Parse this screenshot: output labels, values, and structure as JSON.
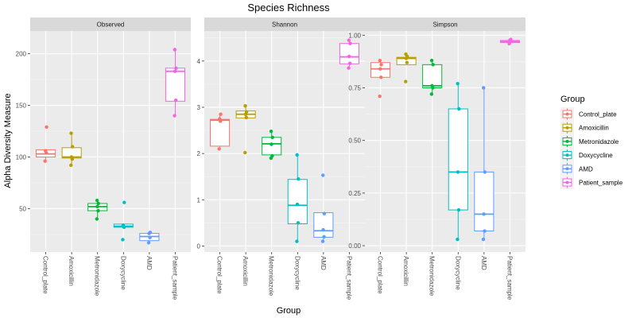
{
  "chart_data": {
    "type": "boxplot",
    "title": "Species Richness",
    "xlabel": "Group",
    "ylabel": "Alpha Diversity Measure",
    "categories": [
      "Control_plate",
      "Amoxicillin",
      "Metronidazole",
      "Doxycycline",
      "AMD",
      "Patient_sample"
    ],
    "colors": [
      "#F8766D",
      "#B79F00",
      "#00BA38",
      "#00BFC4",
      "#619CFF",
      "#F564E3"
    ],
    "legend": {
      "title": "Group",
      "position": "right",
      "labels": [
        "Control_plate",
        "Amoxicillin",
        "Metronidazole",
        "Doxycycline",
        "AMD",
        "Patient_sample"
      ]
    },
    "grid": true,
    "panels": [
      {
        "name": "Observed",
        "ylim": [
          8,
          222
        ],
        "yticks": [
          50,
          100,
          150,
          200
        ],
        "ytick_labels": [
          "50",
          "100",
          "150",
          "200"
        ],
        "boxes": [
          {
            "q1": 100,
            "median": 103,
            "q3": 107,
            "wlo": 96,
            "whi": 107
          },
          {
            "q1": 99,
            "median": 100,
            "q3": 109,
            "wlo": 92,
            "whi": 123
          },
          {
            "q1": 48,
            "median": 52,
            "q3": 55,
            "wlo": 40,
            "whi": 58
          },
          {
            "q1": 32,
            "median": 33,
            "q3": 35,
            "wlo": 32,
            "whi": 35
          },
          {
            "q1": 19,
            "median": 23,
            "q3": 26,
            "wlo": 17,
            "whi": 27
          },
          {
            "q1": 154,
            "median": 183,
            "q3": 186,
            "wlo": 140,
            "whi": 204
          }
        ],
        "points": [
          [
            96,
            104,
            106,
            129
          ],
          [
            92,
            98,
            100,
            110,
            123
          ],
          [
            40,
            48,
            52,
            55,
            58
          ],
          [
            20,
            32,
            34,
            56
          ],
          [
            17,
            22,
            26,
            27
          ],
          [
            140,
            155,
            183,
            186,
            204
          ]
        ]
      },
      {
        "name": "Shannon",
        "ylim": [
          -0.13,
          4.65
        ],
        "yticks": [
          0,
          1,
          2,
          3,
          4
        ],
        "ytick_labels": [
          "0",
          "1",
          "2",
          "3",
          "4"
        ],
        "boxes": [
          {
            "q1": 2.16,
            "median": 2.72,
            "q3": 2.74,
            "wlo": 2.1,
            "whi": 2.85
          },
          {
            "q1": 2.77,
            "median": 2.85,
            "q3": 2.92,
            "wlo": 2.77,
            "whi": 3.03
          },
          {
            "q1": 1.97,
            "median": 2.21,
            "q3": 2.35,
            "wlo": 1.9,
            "whi": 2.48
          },
          {
            "q1": 0.48,
            "median": 0.88,
            "q3": 1.44,
            "wlo": 0.1,
            "whi": 1.97
          },
          {
            "q1": 0.19,
            "median": 0.33,
            "q3": 0.72,
            "wlo": 0.1,
            "whi": 0.72
          },
          {
            "q1": 3.94,
            "median": 4.09,
            "q3": 4.38,
            "wlo": 3.85,
            "whi": 4.45
          }
        ],
        "points": [
          [
            2.1,
            2.7,
            2.75,
            2.85
          ],
          [
            2.02,
            2.78,
            2.85,
            2.9,
            3.03
          ],
          [
            1.9,
            1.95,
            2.2,
            2.35,
            2.48
          ],
          [
            0.1,
            0.5,
            0.9,
            1.45,
            1.97
          ],
          [
            0.1,
            0.2,
            0.35,
            0.7,
            1.53
          ],
          [
            3.85,
            3.95,
            4.1,
            4.38,
            4.45
          ]
        ]
      },
      {
        "name": "Simpson",
        "ylim": [
          -0.03,
          1.02
        ],
        "yticks": [
          0,
          0.25,
          0.5,
          0.75,
          1
        ],
        "ytick_labels": [
          "0.00",
          "0.25",
          "0.50",
          "0.75",
          "1.00"
        ],
        "boxes": [
          {
            "q1": 0.8,
            "median": 0.84,
            "q3": 0.87,
            "wlo": 0.8,
            "whi": 0.88
          },
          {
            "q1": 0.86,
            "median": 0.89,
            "q3": 0.895,
            "wlo": 0.86,
            "whi": 0.9
          },
          {
            "q1": 0.75,
            "median": 0.76,
            "q3": 0.86,
            "wlo": 0.72,
            "whi": 0.88
          },
          {
            "q1": 0.17,
            "median": 0.35,
            "q3": 0.65,
            "wlo": 0.03,
            "whi": 0.77
          },
          {
            "q1": 0.07,
            "median": 0.15,
            "q3": 0.35,
            "wlo": 0.03,
            "whi": 0.75
          },
          {
            "q1": 0.965,
            "median": 0.97,
            "q3": 0.975,
            "wlo": 0.96,
            "whi": 0.98
          }
        ],
        "points": [
          [
            0.71,
            0.8,
            0.84,
            0.86,
            0.88
          ],
          [
            0.78,
            0.87,
            0.89,
            0.9,
            0.91
          ],
          [
            0.72,
            0.75,
            0.76,
            0.86,
            0.88
          ],
          [
            0.03,
            0.17,
            0.35,
            0.65,
            0.77
          ],
          [
            0.03,
            0.07,
            0.15,
            0.35,
            0.75
          ],
          [
            0.96,
            0.97,
            0.975,
            0.98
          ]
        ]
      }
    ]
  }
}
